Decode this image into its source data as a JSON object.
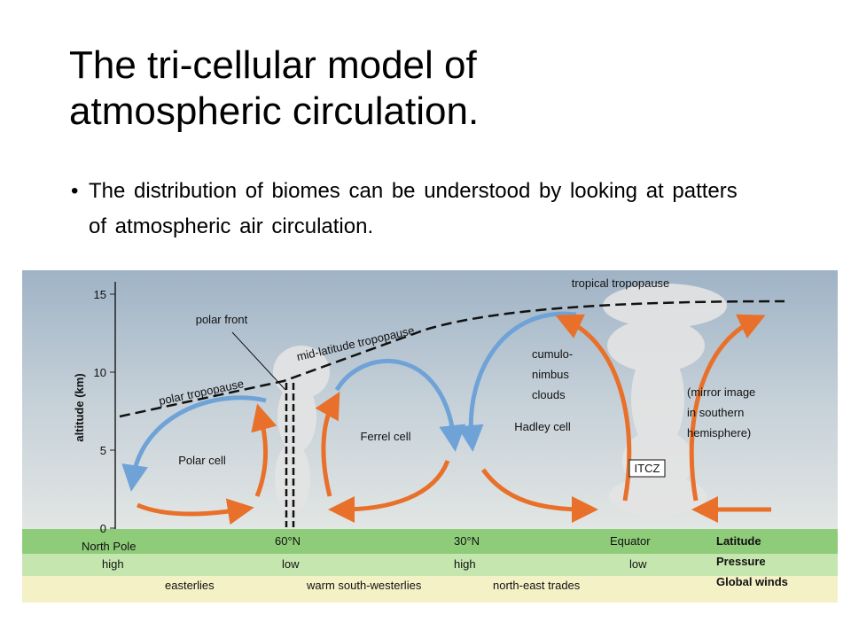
{
  "header": {
    "title": "The tri-cellular model of atmospheric circulation."
  },
  "bullets": [
    "The distribution of biomes can be understood by looking at patters of atmospheric air circulation."
  ],
  "diagram": {
    "axis_label": "altitude (km)",
    "axis_ticks": [
      15,
      10,
      5,
      0
    ],
    "labels": {
      "tropical_tropopause": "tropical tropopause",
      "polar_front": "polar front",
      "mid_latitude_tropopause": "mid-latitude tropopause",
      "polar_tropopause": "polar tropopause",
      "cumulonimbus": [
        "cumulo-",
        "nimbus",
        "clouds"
      ],
      "mirror": [
        "(mirror image",
        "in southern",
        "hemisphere)"
      ],
      "ferrel_cell": "Ferrel cell",
      "hadley_cell": "Hadley cell",
      "polar_cell": "Polar cell",
      "itcz": "ITCZ"
    },
    "rows": [
      {
        "name": "Latitude",
        "cells": [
          "North Pole",
          "60°N",
          "30°N",
          "Equator"
        ]
      },
      {
        "name": "Pressure",
        "cells": [
          "high",
          "low",
          "high",
          "low"
        ]
      },
      {
        "name": "Global winds",
        "cells": [
          "easterlies",
          "warm south-westerlies",
          "north-east trades"
        ]
      }
    ]
  }
}
